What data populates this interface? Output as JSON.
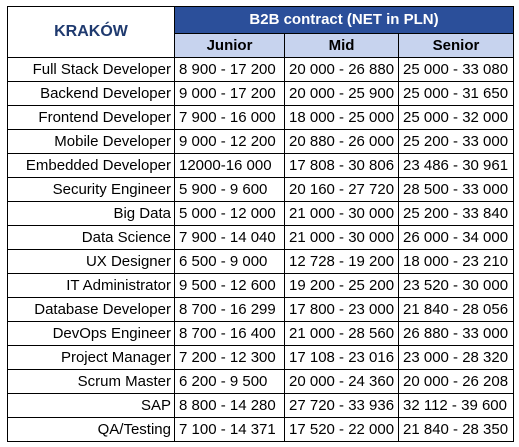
{
  "table": {
    "city": "KRAKÓW",
    "contract_header": "B2B contract (NET in PLN)",
    "levels": [
      "Junior",
      "Mid",
      "Senior"
    ],
    "rows": [
      {
        "role": "Full Stack Developer",
        "junior": "8 900 - 17 200",
        "mid": "20 000 - 26 880",
        "senior": "25 000 - 33 080"
      },
      {
        "role": "Backend Developer",
        "junior": "9 000 - 17 200",
        "mid": "20 000 - 25 900",
        "senior": "25 000 - 31 650"
      },
      {
        "role": "Frontend Developer",
        "junior": "7 900 - 16 000",
        "mid": "18 000 - 25 000",
        "senior": "25 000 - 32 000"
      },
      {
        "role": "Mobile Developer",
        "junior": "9 000 - 12 200",
        "mid": "20 880 - 26 000",
        "senior": "25 200 - 33 000"
      },
      {
        "role": "Embedded Developer",
        "junior": "12000-16 000",
        "mid": "17 808 - 30 806",
        "senior": "23 486 - 30 961"
      },
      {
        "role": "Security Engineer",
        "junior": "5 900 - 9 600",
        "mid": "20 160 - 27 720",
        "senior": "28 500 - 33 000"
      },
      {
        "role": "Big Data",
        "junior": "5 000 - 12 000",
        "mid": "21 000 - 30 000",
        "senior": "25 200 - 33 840"
      },
      {
        "role": "Data Science",
        "junior": "7 900 - 14 040",
        "mid": "21 000 - 30 000",
        "senior": "26 000 - 34 000"
      },
      {
        "role": "UX Designer",
        "junior": "6 500 - 9 000",
        "mid": "12 728 - 19 200",
        "senior": "18 000 - 23 210"
      },
      {
        "role": "IT Administrator",
        "junior": "9 500 - 12 600",
        "mid": "19 200 - 25 200",
        "senior": "23 520 - 30 000"
      },
      {
        "role": "Database Developer",
        "junior": "8 700 - 16 299",
        "mid": "17 800 - 23 000",
        "senior": "21 840 - 28 056"
      },
      {
        "role": "DevOps Engineer",
        "junior": "8 700 - 16 400",
        "mid": "21 000 - 28 560",
        "senior": "26 880 - 33 000"
      },
      {
        "role": "Project Manager",
        "junior": "7 200 - 12 300",
        "mid": "17 108 - 23 016",
        "senior": "23 000 - 28 320"
      },
      {
        "role": "Scrum Master",
        "junior": "6 200 - 9 500",
        "mid": "20 000 - 24 360",
        "senior": "20 000 - 26 208"
      },
      {
        "role": "SAP",
        "junior": "8 800 - 14 280",
        "mid": "27 720 - 33 936",
        "senior": "32 112 - 39 600"
      },
      {
        "role": "QA/Testing",
        "junior": "7 100 - 14 371",
        "mid": "17 520 - 22 000",
        "senior": "21 840 - 28 350"
      }
    ]
  },
  "colors": {
    "header_bg": "#2b4f9a",
    "level_bg": "#c7d3ee",
    "city_text": "#1f3a6f"
  }
}
